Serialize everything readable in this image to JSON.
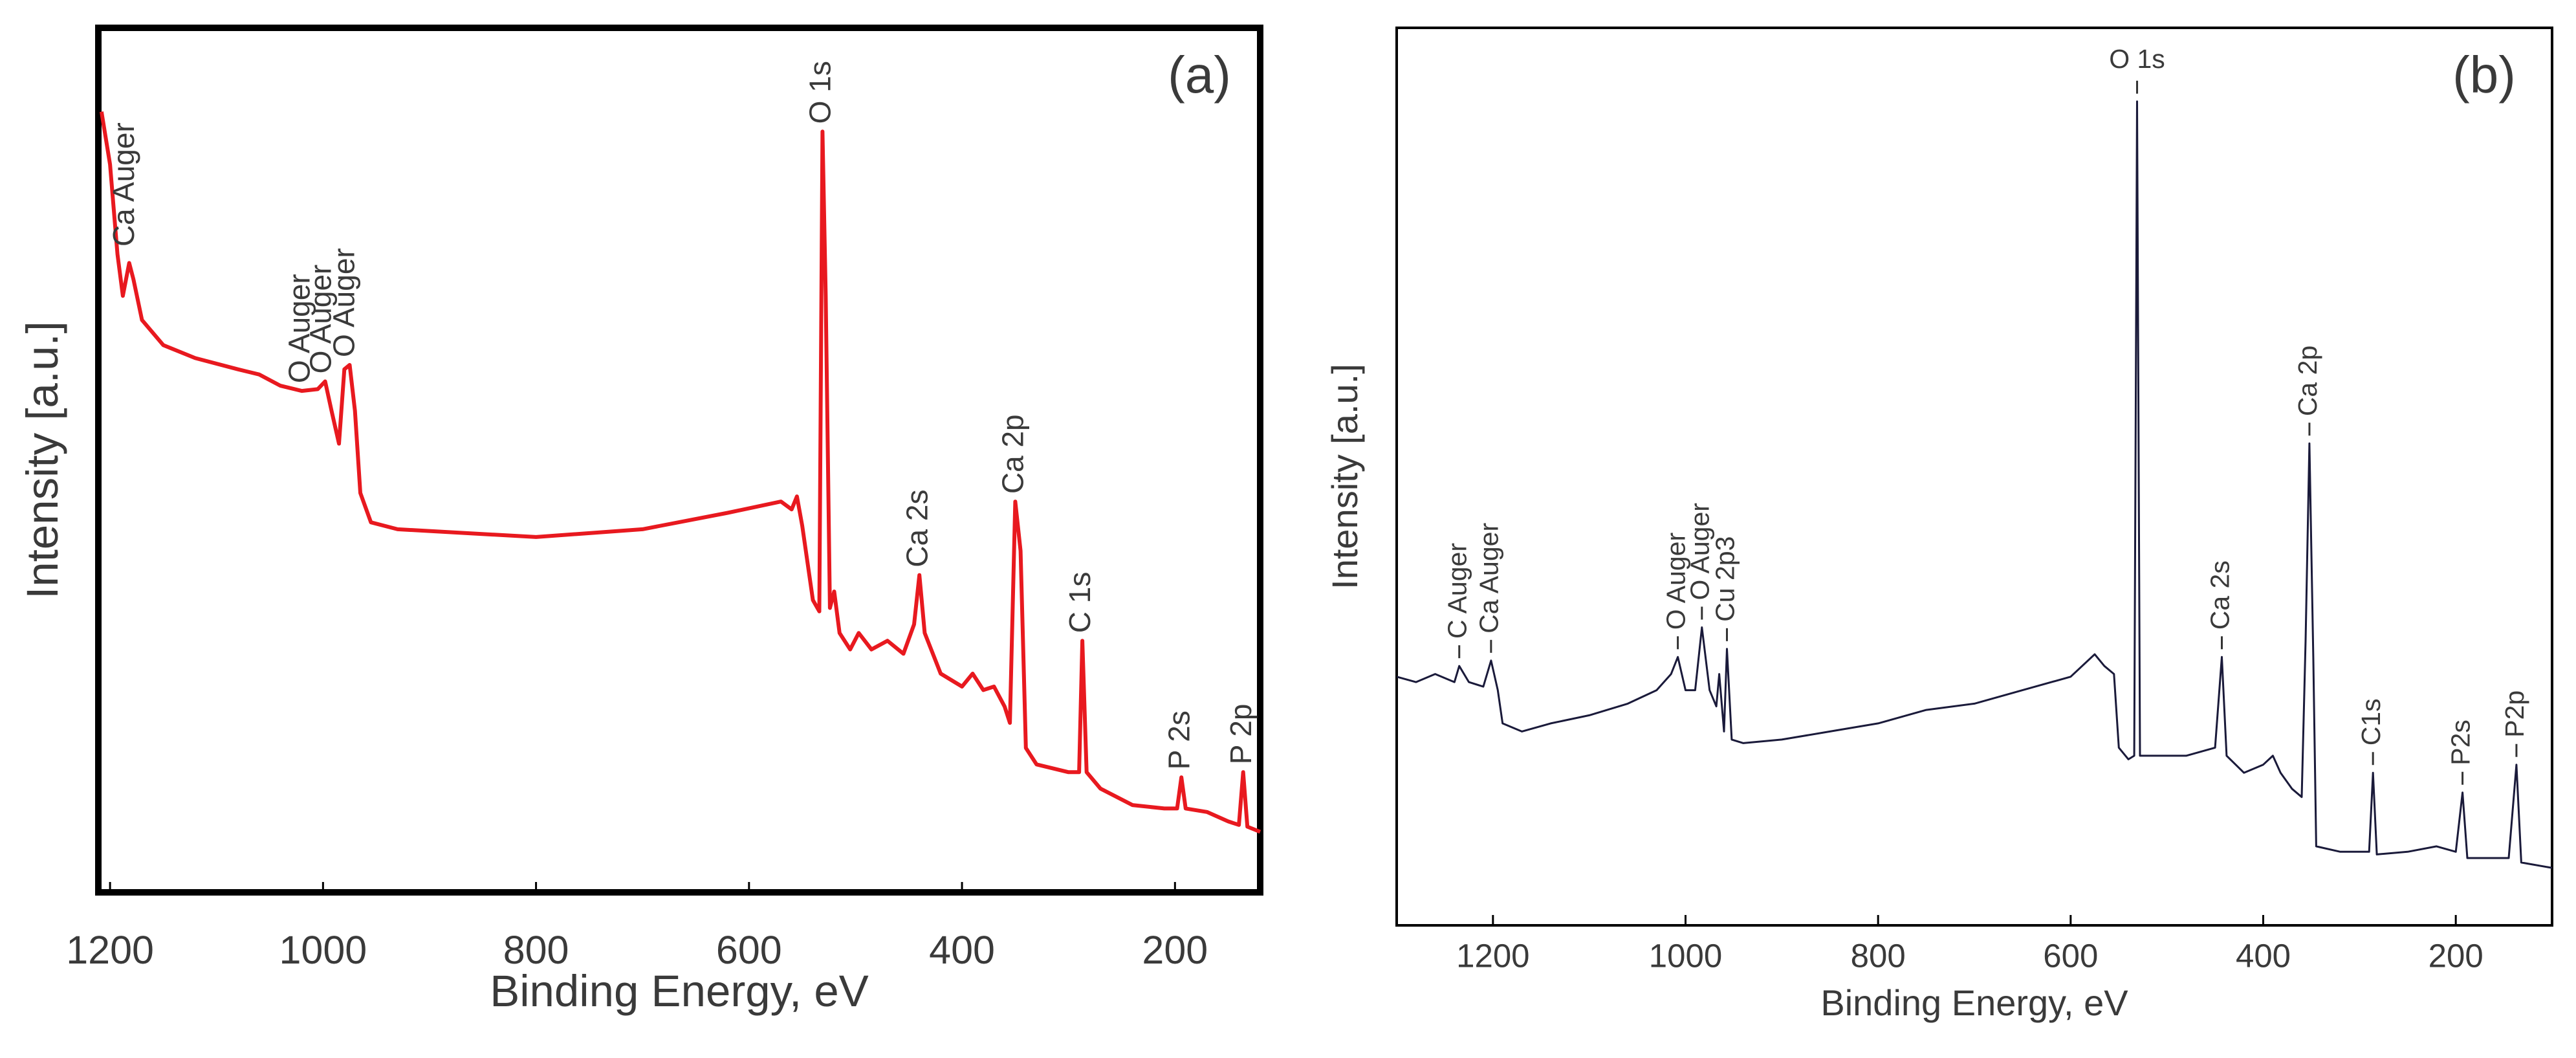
{
  "chart_data": [
    {
      "type": "line",
      "panel_label": "(a)",
      "x_label": "Binding Energy, eV",
      "y_label": "Intensity [a.u.]",
      "xlim": [
        1211,
        120
      ],
      "xticks": [
        1200,
        1000,
        800,
        600,
        400,
        200
      ],
      "ylim": [
        0,
        100
      ],
      "series": [
        {
          "color": "#e8191f",
          "x": [
            1208,
            1200,
            1193,
            1188,
            1182,
            1178,
            1170,
            1150,
            1120,
            1080,
            1060,
            1040,
            1020,
            1005,
            998,
            992,
            985,
            980,
            975,
            970,
            965,
            955,
            930,
            800,
            700,
            620,
            570,
            560,
            555,
            550,
            540,
            534,
            531,
            528,
            524,
            520,
            515,
            505,
            497,
            485,
            470,
            455,
            445,
            440,
            435,
            420,
            400,
            390,
            380,
            370,
            360,
            355,
            350,
            345,
            340,
            330,
            300,
            290,
            287,
            283,
            270,
            240,
            210,
            198,
            194,
            190,
            170,
            150,
            140,
            136,
            132,
            120
          ],
          "values": [
            90.3,
            84.2,
            73.8,
            69.0,
            72.8,
            70.9,
            66.2,
            63.3,
            61.8,
            60.5,
            59.9,
            58.6,
            58.0,
            58.2,
            59.1,
            55.7,
            51.9,
            60.5,
            61.0,
            55.7,
            46.2,
            42.8,
            42.0,
            41.1,
            42.0,
            43.9,
            45.2,
            44.3,
            45.8,
            42.4,
            33.8,
            32.5,
            88.0,
            69.0,
            32.9,
            34.8,
            30.0,
            28.1,
            30.0,
            28.1,
            29.1,
            27.6,
            31.0,
            36.7,
            30.0,
            25.3,
            23.8,
            25.3,
            23.4,
            23.8,
            21.5,
            19.6,
            45.2,
            39.5,
            16.7,
            14.8,
            13.9,
            13.9,
            29.1,
            13.9,
            12.0,
            10.1,
            9.7,
            9.7,
            13.3,
            9.7,
            9.3,
            8.2,
            7.8,
            13.9,
            7.6,
            7.0
          ]
        }
      ],
      "annotations": [
        {
          "text": "Ca Auger",
          "x": 1185
        },
        {
          "text": "O Auger",
          "x": 1020
        },
        {
          "text": "O Auger",
          "x": 1000
        },
        {
          "text": "O Auger",
          "x": 978
        },
        {
          "text": "O 1s",
          "x": 531
        },
        {
          "text": "Ca 2s",
          "x": 440
        },
        {
          "text": "Ca 2p",
          "x": 350
        },
        {
          "text": "C 1s",
          "x": 287
        },
        {
          "text": "P 2s",
          "x": 194
        },
        {
          "text": "P 2p",
          "x": 136
        }
      ]
    },
    {
      "type": "line",
      "panel_label": "(b)",
      "x_label": "Binding Energy, eV",
      "y_label": "Intensity [a.u.]",
      "xlim": [
        1300,
        100
      ],
      "xticks": [
        1200,
        1000,
        800,
        600,
        400,
        200
      ],
      "ylim": [
        0,
        100
      ],
      "series": [
        {
          "color": "#1a1a3a",
          "x": [
            1300,
            1280,
            1260,
            1240,
            1235,
            1225,
            1210,
            1202,
            1195,
            1190,
            1170,
            1140,
            1100,
            1060,
            1030,
            1015,
            1008,
            1000,
            990,
            983,
            975,
            968,
            965,
            960,
            957,
            952,
            940,
            900,
            850,
            800,
            750,
            700,
            650,
            600,
            575,
            565,
            555,
            550,
            540,
            534,
            531,
            528,
            520,
            480,
            450,
            443,
            438,
            420,
            400,
            390,
            382,
            370,
            360,
            356,
            352,
            348,
            345,
            320,
            300,
            290,
            286,
            282,
            250,
            220,
            200,
            193,
            188,
            160,
            145,
            137,
            132,
            100
          ],
          "values": [
            27.7,
            27.1,
            28.0,
            27.1,
            28.9,
            27.1,
            26.6,
            29.5,
            26.2,
            22.5,
            21.6,
            22.5,
            23.4,
            24.7,
            26.2,
            28.0,
            29.9,
            26.2,
            26.2,
            33.2,
            26.2,
            24.4,
            28.0,
            21.6,
            30.8,
            20.7,
            20.3,
            20.7,
            21.6,
            22.5,
            24.0,
            24.7,
            26.2,
            27.7,
            30.2,
            28.9,
            28.0,
            19.8,
            18.5,
            18.9,
            91.8,
            18.9,
            18.9,
            18.9,
            19.8,
            29.9,
            18.9,
            17.0,
            17.9,
            18.9,
            17.0,
            15.2,
            14.3,
            31.7,
            53.7,
            29.9,
            8.8,
            8.2,
            8.2,
            8.2,
            17.0,
            7.9,
            8.2,
            8.8,
            8.2,
            14.8,
            7.5,
            7.5,
            7.5,
            17.9,
            7.0,
            6.4
          ]
        }
      ],
      "annotations": [
        {
          "text": "C Auger",
          "x": 1235
        },
        {
          "text": "Ca Auger",
          "x": 1202
        },
        {
          "text": "O Auger",
          "x": 1008
        },
        {
          "text": "O Auger",
          "x": 983
        },
        {
          "text": "Cu 2p3",
          "x": 957
        },
        {
          "text": "O 1s",
          "x": 531,
          "orientation": "horizontal"
        },
        {
          "text": "Ca 2s",
          "x": 443
        },
        {
          "text": "Ca 2p",
          "x": 352
        },
        {
          "text": "C1s",
          "x": 286
        },
        {
          "text": "P2s",
          "x": 193
        },
        {
          "text": "P2p",
          "x": 137
        }
      ]
    }
  ]
}
